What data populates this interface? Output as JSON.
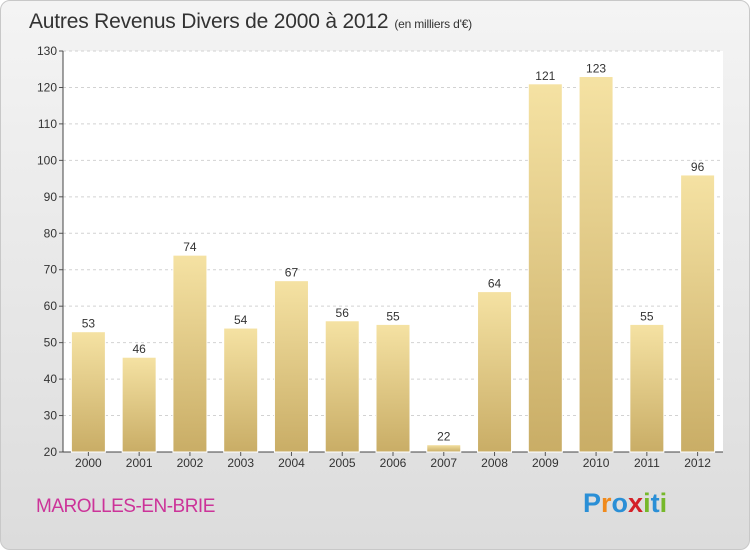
{
  "title": "Autres Revenus Divers de 2000 à 2012",
  "title_unit": "(en milliers d'€)",
  "location": "MAROLLES-EN-BRIE",
  "logo": {
    "text": "Proxiti",
    "letters": [
      "P",
      "r",
      "o",
      "x",
      "i",
      "t",
      "i"
    ],
    "colors": [
      "#2a8fd6",
      "#f08a1c",
      "#2a8fd6",
      "#d42027",
      "#76b82a",
      "#2a8fd6",
      "#76b82a"
    ]
  },
  "colors": {
    "bar_light": "#f5e2a3",
    "bar_dark": "#c9ad66",
    "location": "#cc3399"
  },
  "chart_data": {
    "type": "bar",
    "title": "Autres Revenus Divers de 2000 à 2012",
    "categories": [
      "2000",
      "2001",
      "2002",
      "2003",
      "2004",
      "2005",
      "2006",
      "2007",
      "2008",
      "2009",
      "2010",
      "2011",
      "2012"
    ],
    "values": [
      53,
      46,
      74,
      54,
      67,
      56,
      55,
      22,
      64,
      121,
      123,
      55,
      96
    ],
    "ylim": [
      20,
      130
    ],
    "yticks": [
      20,
      30,
      40,
      50,
      60,
      70,
      80,
      90,
      100,
      110,
      120,
      130
    ],
    "grid": true,
    "xlabel": "",
    "ylabel": ""
  }
}
